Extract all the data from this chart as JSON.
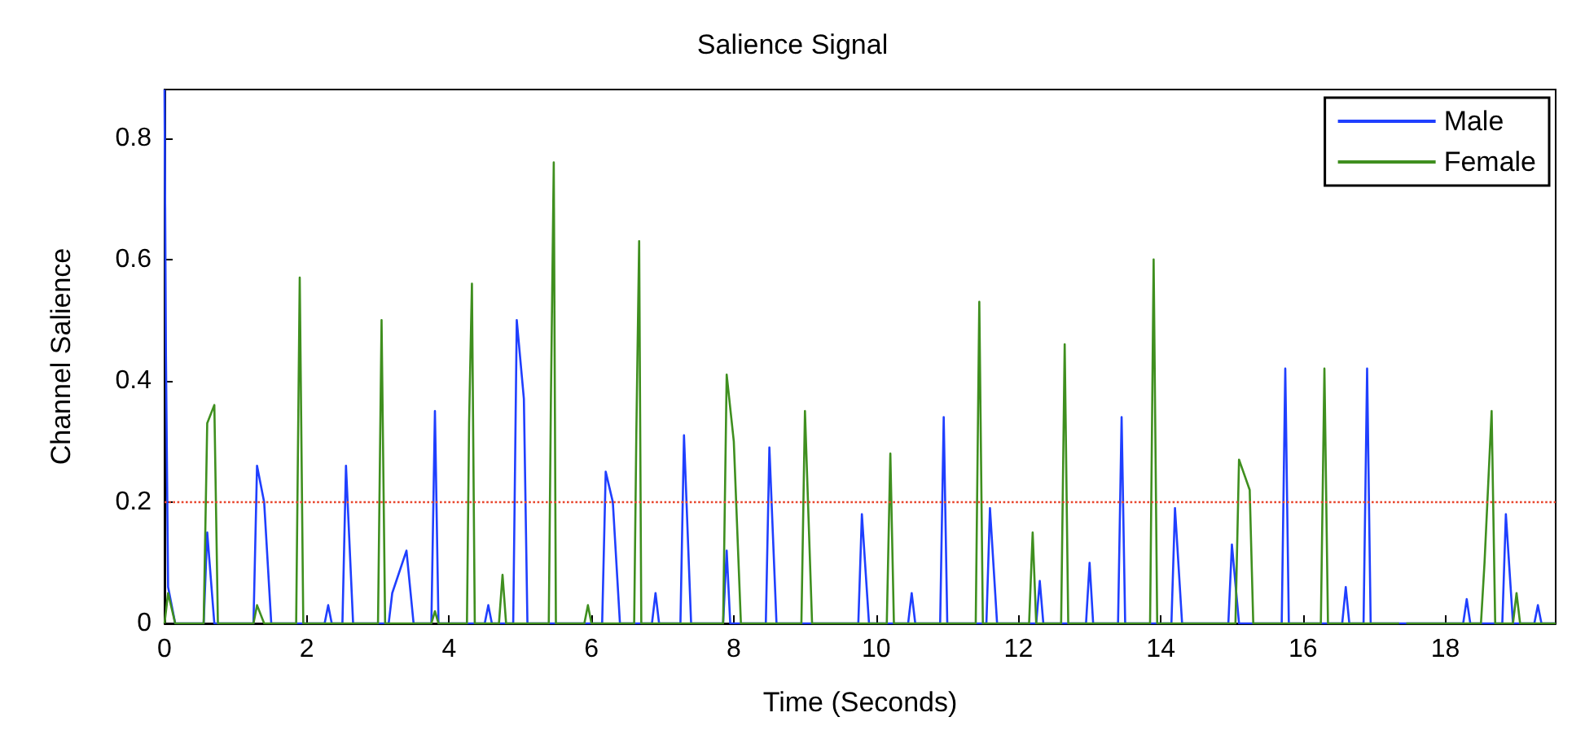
{
  "chart_data": {
    "type": "line",
    "title": "Salience Signal",
    "xlabel": "Time (Seconds)",
    "ylabel": "Channel Salience",
    "xlim": [
      0,
      19.55
    ],
    "xticks": [
      0,
      2,
      4,
      6,
      8,
      10,
      12,
      14,
      16,
      18
    ],
    "ylim": [
      0,
      0.88
    ],
    "yticks": [
      0,
      0.2,
      0.4,
      0.6,
      0.8
    ],
    "grid": false,
    "legend": "top right",
    "marker": "none",
    "line_style": "solid",
    "ref_lines": [
      {
        "axis": "y",
        "value": 0.2,
        "color": "#e8452c",
        "line_style": "dotted"
      }
    ],
    "series": [
      {
        "name": "Male",
        "color": "#1f3fff",
        "x": [
          0,
          0.02,
          0.05,
          0.15,
          0.55,
          0.6,
          0.7,
          1.25,
          1.3,
          1.4,
          1.5,
          2.25,
          2.3,
          2.35,
          2.5,
          2.55,
          2.65,
          3.15,
          3.2,
          3.4,
          3.5,
          3.75,
          3.8,
          3.85,
          4.5,
          4.55,
          4.6,
          4.9,
          4.95,
          5.05,
          5.1,
          6.15,
          6.2,
          6.3,
          6.4,
          6.85,
          6.9,
          6.95,
          7.25,
          7.3,
          7.4,
          7.85,
          7.9,
          7.95,
          8.45,
          8.5,
          8.6,
          9.75,
          9.8,
          9.9,
          10.45,
          10.5,
          10.55,
          10.9,
          10.95,
          11.0,
          11.55,
          11.6,
          11.7,
          12.25,
          12.3,
          12.35,
          12.95,
          13.0,
          13.05,
          13.4,
          13.45,
          13.5,
          14.15,
          14.2,
          14.3,
          14.95,
          15.0,
          15.1,
          15.7,
          15.75,
          15.8,
          16.55,
          16.6,
          16.65,
          16.85,
          16.9,
          16.95,
          18.25,
          18.3,
          18.35,
          18.8,
          18.85,
          18.95,
          19.25,
          19.3,
          19.35,
          19.55
        ],
        "values": [
          0.88,
          0.44,
          0.06,
          0,
          0,
          0.15,
          0,
          0,
          0.26,
          0.2,
          0,
          0,
          0.03,
          0,
          0,
          0.26,
          0,
          0,
          0.05,
          0.12,
          0,
          0,
          0.35,
          0,
          0,
          0.03,
          0,
          0,
          0.5,
          0.37,
          0,
          0,
          0.25,
          0.2,
          0,
          0,
          0.05,
          0,
          0,
          0.31,
          0,
          0,
          0.12,
          0,
          0,
          0.29,
          0,
          0,
          0.18,
          0,
          0,
          0.05,
          0,
          0,
          0.34,
          0,
          0,
          0.19,
          0,
          0,
          0.07,
          0,
          0,
          0.1,
          0,
          0,
          0.34,
          0,
          0,
          0.19,
          0,
          0,
          0.13,
          0,
          0,
          0.42,
          0,
          0,
          0.06,
          0,
          0,
          0.42,
          0,
          0,
          0.04,
          0,
          0,
          0.18,
          0,
          0,
          0.03,
          0,
          0
        ]
      },
      {
        "name": "Female",
        "color": "#3f8f1f",
        "x": [
          0,
          0.05,
          0.15,
          0.55,
          0.6,
          0.7,
          0.75,
          1.25,
          1.3,
          1.4,
          1.85,
          1.9,
          1.95,
          3.0,
          3.05,
          3.1,
          3.75,
          3.8,
          3.85,
          4.25,
          4.28,
          4.32,
          4.36,
          4.7,
          4.75,
          4.8,
          5.4,
          5.43,
          5.47,
          5.5,
          5.9,
          5.95,
          6.0,
          6.6,
          6.63,
          6.67,
          6.7,
          7.85,
          7.9,
          8.0,
          8.1,
          8.95,
          9.0,
          9.1,
          10.15,
          10.2,
          10.25,
          11.4,
          11.45,
          11.5,
          12.15,
          12.2,
          12.25,
          12.6,
          12.65,
          12.7,
          13.85,
          13.9,
          13.95,
          15.05,
          15.1,
          15.25,
          15.3,
          16.25,
          16.3,
          16.35,
          17.35,
          17.4,
          17.45,
          18.5,
          18.55,
          18.65,
          18.7,
          18.95,
          19.0,
          19.05,
          19.55
        ],
        "values": [
          0,
          0.05,
          0,
          0,
          0.33,
          0.36,
          0,
          0,
          0.03,
          0,
          0,
          0.57,
          0,
          0,
          0.5,
          0,
          0,
          0.02,
          0,
          0,
          0.33,
          0.56,
          0,
          0,
          0.08,
          0,
          0,
          0.37,
          0.76,
          0,
          0,
          0.03,
          0,
          0,
          0.31,
          0.63,
          0,
          0,
          0.41,
          0.3,
          0,
          0,
          0.35,
          0,
          0,
          0.28,
          0,
          0,
          0.53,
          0,
          0,
          0.15,
          0,
          0,
          0.46,
          0,
          0,
          0.6,
          0,
          0,
          0.27,
          0.22,
          0,
          0,
          0.42,
          0,
          0,
          null,
          0,
          0,
          0.1,
          0.35,
          0,
          0,
          0.05,
          0,
          0
        ]
      }
    ]
  }
}
